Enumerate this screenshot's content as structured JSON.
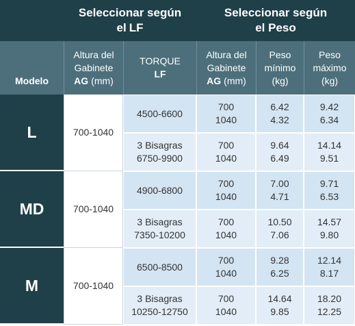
{
  "header": {
    "groups": [
      {
        "lines": [
          [
            {
              "text": "Seleccionar según"
            }
          ],
          [
            {
              "text": "el"
            },
            {
              "text": "LF",
              "bold": true
            }
          ]
        ]
      },
      {
        "lines": [
          [
            {
              "text": "Seleccionar según"
            }
          ],
          [
            {
              "text": "el Peso"
            }
          ]
        ]
      }
    ],
    "columns": [
      {
        "lines": [
          [
            {
              "text": "Modelo",
              "bold": true
            }
          ]
        ]
      },
      {
        "lines": [
          [
            {
              "text": "Altura del"
            }
          ],
          [
            {
              "text": "Gabinete"
            }
          ],
          [
            {
              "text": "AG",
              "bold": true
            },
            {
              "text": "(mm)"
            }
          ]
        ]
      },
      {
        "lines": [
          [
            {
              "text": "TORQUE"
            }
          ],
          [
            {
              "text": "LF",
              "bold": true
            }
          ]
        ]
      },
      {
        "lines": [
          [
            {
              "text": "Altura del"
            }
          ],
          [
            {
              "text": "Gabinete"
            }
          ],
          [
            {
              "text": "AG",
              "bold": true
            },
            {
              "text": "(mm)"
            }
          ]
        ]
      },
      {
        "lines": [
          [
            {
              "text": "Peso"
            }
          ],
          [
            {
              "text": "mínimo"
            }
          ],
          [
            {
              "text": "(kg)"
            }
          ]
        ]
      },
      {
        "lines": [
          [
            {
              "text": "Peso"
            }
          ],
          [
            {
              "text": "máximo"
            }
          ],
          [
            {
              "text": "(kg)"
            }
          ]
        ]
      }
    ]
  },
  "models": [
    {
      "name": "L",
      "ag": "700-1040",
      "rows": [
        {
          "torque": [
            "4500-6600"
          ],
          "ag": [
            "700",
            "1040"
          ],
          "min": [
            "6.42",
            "4.32"
          ],
          "max": [
            "9.42",
            "6.34"
          ]
        },
        {
          "torque": [
            "3 Bisagras",
            "6750-9900"
          ],
          "ag": [
            "700",
            "1040"
          ],
          "min": [
            "9.64",
            "6.49"
          ],
          "max": [
            "14.14",
            "9.51"
          ]
        }
      ]
    },
    {
      "name": "MD",
      "ag": "700-1040",
      "rows": [
        {
          "torque": [
            "4900-6800"
          ],
          "ag": [
            "700",
            "1040"
          ],
          "min": [
            "7.00",
            "4.71"
          ],
          "max": [
            "9.71",
            "6.53"
          ]
        },
        {
          "torque": [
            "3 Bisagras",
            "7350-10200"
          ],
          "ag": [
            "700",
            "1040"
          ],
          "min": [
            "10.50",
            "7.06"
          ],
          "max": [
            "14.57",
            "9.80"
          ]
        }
      ]
    },
    {
      "name": "M",
      "ag": "700-1040",
      "rows": [
        {
          "torque": [
            "6500-8500"
          ],
          "ag": [
            "700",
            "1040"
          ],
          "min": [
            "9.28",
            "6.25"
          ],
          "max": [
            "12.14",
            "8.17"
          ]
        },
        {
          "torque": [
            "3 Bisagras",
            "10250-12750"
          ],
          "ag": [
            "700",
            "1040"
          ],
          "min": [
            "14.64",
            "9.85"
          ],
          "max": [
            "18.20",
            "12.25"
          ]
        }
      ]
    }
  ]
}
